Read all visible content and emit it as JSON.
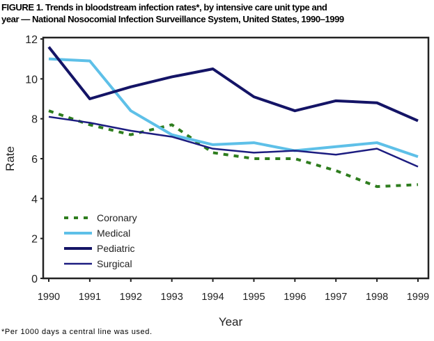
{
  "title_line1": "FIGURE 1. Trends in bloodstream infection rates*, by intensive care unit type and",
  "title_line2": "year — National Nosocomial Infection Surveillance System, United States, 1990–1999",
  "footnote": "*Per 1000 days a central line was used.",
  "chart_data": {
    "type": "line",
    "xlabel": "Year",
    "ylabel": "Rate",
    "x": [
      1990,
      1991,
      1992,
      1993,
      1994,
      1995,
      1996,
      1997,
      1998,
      1999
    ],
    "x_tick_labels": [
      "1990",
      "1991",
      "1992",
      "1993",
      "1994",
      "1995",
      "1996",
      "1997",
      "1998",
      "1999"
    ],
    "ylim": [
      0,
      12
    ],
    "y_ticks": [
      0,
      2,
      4,
      6,
      8,
      10,
      12
    ],
    "y_tick_labels": [
      "0",
      "2",
      "4",
      "6",
      "8",
      "10",
      "12"
    ],
    "grid": false,
    "legend_position": "bottom-left",
    "series": [
      {
        "name": "Coronary",
        "color": "#2e7d1e",
        "style": "dashed",
        "values": [
          8.4,
          7.7,
          7.2,
          7.7,
          6.3,
          6.0,
          6.0,
          5.4,
          4.6,
          4.7
        ]
      },
      {
        "name": "Medical",
        "color": "#5ec0e8",
        "style": "solid-thick",
        "values": [
          11.0,
          10.9,
          8.4,
          7.2,
          6.7,
          6.8,
          6.4,
          6.6,
          6.8,
          6.1
        ]
      },
      {
        "name": "Pediatric",
        "color": "#141466",
        "style": "solid-thick",
        "values": [
          11.6,
          9.0,
          9.6,
          10.1,
          10.5,
          9.1,
          8.4,
          8.9,
          8.8,
          7.9
        ]
      },
      {
        "name": "Surgical",
        "color": "#1c1c80",
        "style": "solid-thin",
        "values": [
          8.1,
          7.8,
          7.4,
          7.1,
          6.5,
          6.3,
          6.4,
          6.2,
          6.5,
          5.6
        ]
      }
    ]
  }
}
